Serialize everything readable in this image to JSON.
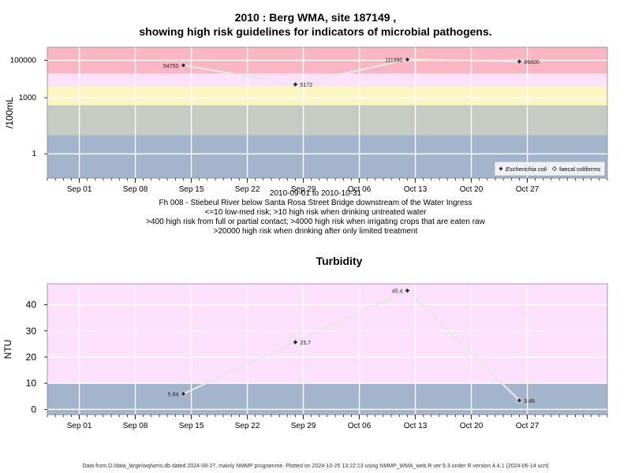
{
  "page": {
    "title_line1": "2010 : Berg WMA, site 187149 ,",
    "title_line2": "showing high risk guidelines for indicators of microbial pathogens.",
    "subtitle_lines": [
      "2010-09-01 to 2010-10-31",
      "Fh 008 - Stiebeul River below Santa Rosa Street Bridge downstream of the Water Ingress",
      "<=10 low-med risk; >10 high risk when drinking untreated water",
      ">400 high risk from full or partial contact; >4000 high risk when irrigating crops that are eaten raw",
      ">20000 high risk when drinking after only limited treatment"
    ],
    "footer": "Data from D:/data_large/wq/wms.db dated 2024-08-27, mainly NMMP programme. Plotted on 2024-10-25 13:22:13 using NMMP_WMA_web.R ver 9.3 under R version 4.4.1 (2024-06-14 ucrt)"
  },
  "chart_data": [
    {
      "type": "line",
      "title": "",
      "ylabel": "/100mL",
      "yscale": "log",
      "ylim": [
        0.05,
        500000
      ],
      "yticks": [
        1,
        1000,
        100000
      ],
      "ytick_labels": [
        "1",
        "1000",
        "100000"
      ],
      "xlim": [
        "2010-08-28",
        "2010-11-06"
      ],
      "xticks": [
        "2010-09-01",
        "2010-09-08",
        "2010-09-15",
        "2010-09-22",
        "2010-09-29",
        "2010-10-06",
        "2010-10-13",
        "2010-10-20",
        "2010-10-27"
      ],
      "xtick_labels": [
        "Sep 01",
        "Sep 08",
        "Sep 15",
        "Sep 22",
        "Sep 29",
        "Oct 06",
        "Oct 13",
        "Oct 20",
        "Oct 27"
      ],
      "grid": true,
      "bands": [
        {
          "from": 0.05,
          "to": 10,
          "color": "#a3b4cc"
        },
        {
          "from": 10,
          "to": 400,
          "color": "#c5cdc3"
        },
        {
          "from": 400,
          "to": 4000,
          "color": "#fdf6c3"
        },
        {
          "from": 4000,
          "to": 20000,
          "color": "#fce0fc"
        },
        {
          "from": 20000,
          "to": 500000,
          "color": "#fbb6c4"
        }
      ],
      "series": [
        {
          "name": "Escherichia coli",
          "marker": "filled-diamond",
          "x": [
            "2010-09-14",
            "2010-09-28",
            "2010-10-12",
            "2010-10-26"
          ],
          "y": [
            54750,
            5172,
            111990,
            86600
          ],
          "labels": [
            "54750",
            "5172",
            "111990",
            "86600"
          ]
        }
      ],
      "legend": {
        "placement": "bottom-right",
        "entries": [
          "Escherichia coli",
          "faecal coliforms"
        ]
      }
    },
    {
      "type": "line",
      "title": "Turbidity",
      "ylabel": "NTU",
      "ylim": [
        -2,
        48
      ],
      "yticks": [
        0,
        10,
        20,
        30,
        40
      ],
      "ytick_labels": [
        "0",
        "10",
        "20",
        "30",
        "40"
      ],
      "xlim": [
        "2010-08-28",
        "2010-11-06"
      ],
      "xticks": [
        "2010-09-01",
        "2010-09-08",
        "2010-09-15",
        "2010-09-22",
        "2010-09-29",
        "2010-10-06",
        "2010-10-13",
        "2010-10-20",
        "2010-10-27"
      ],
      "xtick_labels": [
        "Sep 01",
        "Sep 08",
        "Sep 15",
        "Sep 22",
        "Sep 29",
        "Oct 06",
        "Oct 13",
        "Oct 20",
        "Oct 27"
      ],
      "grid": true,
      "bands": [
        {
          "from": -2,
          "to": 10,
          "color": "#a3b4cc"
        },
        {
          "from": 10,
          "to": 48,
          "color": "#fce0fc"
        }
      ],
      "series": [
        {
          "name": "",
          "marker": "filled-diamond",
          "x": [
            "2010-09-14",
            "2010-09-28",
            "2010-10-12",
            "2010-10-26"
          ],
          "y": [
            5.94,
            25.7,
            45.4,
            3.46
          ],
          "labels": [
            "5.94",
            "25.7",
            "45.4",
            "3.46"
          ]
        }
      ]
    }
  ]
}
